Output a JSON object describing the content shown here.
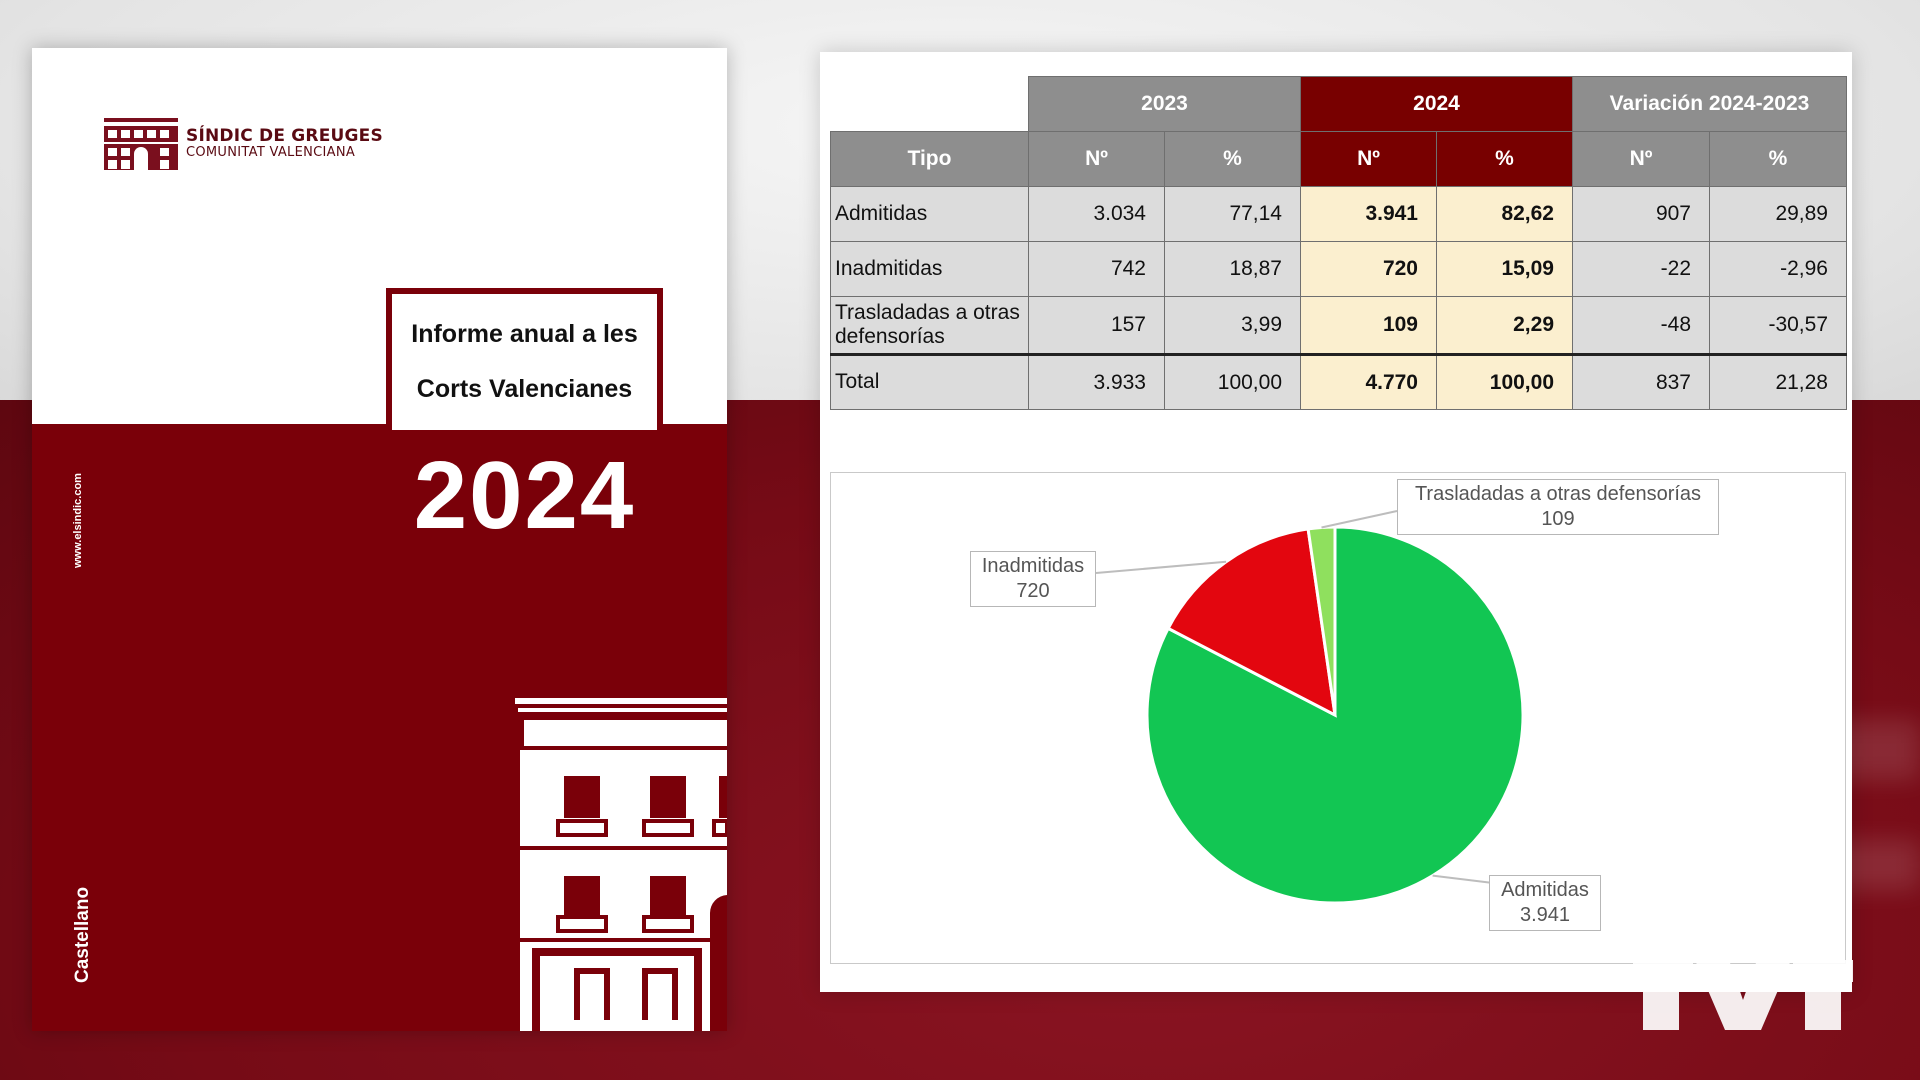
{
  "cover": {
    "org_name": "SÍNDIC DE GREUGES",
    "org_sub": "COMUNITAT VALENCIANA",
    "title_line1": "Informe anual a les",
    "title_line2": "Corts Valencianes",
    "year": "2024",
    "website": "www.elsindic.com",
    "language": "Castellano",
    "colors": {
      "brand": "#7a0009",
      "paper": "#ffffff"
    },
    "icons": [
      "building-logo-icon",
      "building-illustration-icon"
    ]
  },
  "table": {
    "group_headers": [
      "2023",
      "2024",
      "Variación 2024-2023"
    ],
    "sub_headers": [
      "Tipo",
      "Nº",
      "%",
      "Nº",
      "%",
      "Nº",
      "%"
    ],
    "rows": [
      {
        "tipo": "Admitidas",
        "n2023": "3.034",
        "p2023": "77,14",
        "n2024": "3.941",
        "p2024": "82,62",
        "nvar": "907",
        "pvar": "29,89"
      },
      {
        "tipo": "Inadmitidas",
        "n2023": "742",
        "p2023": "18,87",
        "n2024": "720",
        "p2024": "15,09",
        "nvar": "-22",
        "pvar": "-2,96"
      },
      {
        "tipo": "Trasladadas a otras defensorías",
        "n2023": "157",
        "p2023": "3,99",
        "n2024": "109",
        "p2024": "2,29",
        "nvar": "-48",
        "pvar": "-30,57"
      },
      {
        "tipo": "Total",
        "n2023": "3.933",
        "p2023": "100,00",
        "n2024": "4.770",
        "p2024": "100,00",
        "nvar": "837",
        "pvar": "21,28"
      }
    ],
    "colors": {
      "header_gray": "#8e8e8e",
      "header_highlight": "#780000",
      "cell_gray": "#dcdcdc",
      "cell_highlight": "#fbefcf"
    }
  },
  "chart_data": {
    "type": "pie",
    "title": "",
    "slices": [
      {
        "label": "Admitidas",
        "value": 3941,
        "value_label": "3.941",
        "color": "#12c653"
      },
      {
        "label": "Inadmitidas",
        "value": 720,
        "value_label": "720",
        "color": "#e3060f"
      },
      {
        "label": "Trasladadas a otras defensorías",
        "value": 109,
        "value_label": "109",
        "color": "#8fe05e"
      }
    ],
    "start_angle_deg": 0,
    "direction": "clockwise",
    "legend": "none",
    "data_labels": "outside-with-leaders"
  }
}
